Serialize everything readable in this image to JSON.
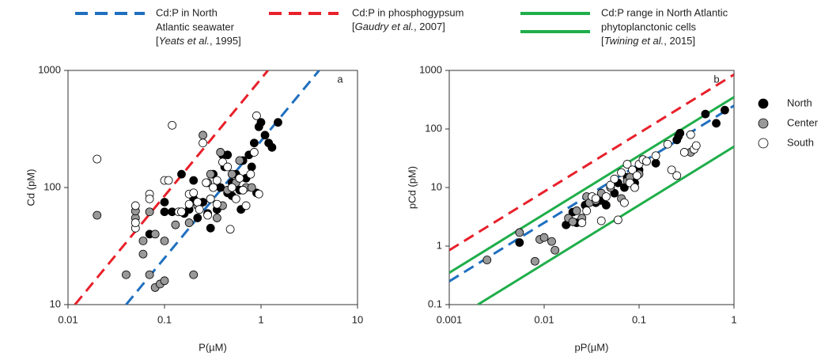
{
  "line_legend": [
    {
      "text": [
        "Cd:P in North",
        "Atlantic seawater"
      ],
      "cite": [
        "[",
        "Yeats et al.",
        ", 1995]"
      ],
      "color": "#1f6fbf",
      "dashed": true,
      "strokes": 1
    },
    {
      "text": [
        "Cd:P in phosphogypsum"
      ],
      "cite": [
        "[",
        "Gaudry et al.",
        ", 2007]"
      ],
      "color": "#e8202a",
      "dashed": true,
      "strokes": 1
    },
    {
      "text": [
        "Cd:P range in North Atlantic",
        "phytoplanctonic cells"
      ],
      "cite": [
        "[",
        "Twining et al.",
        ", 2015]"
      ],
      "color": "#1fae4a",
      "dashed": false,
      "strokes": 2
    }
  ],
  "chart_data": [
    {
      "type": "scatter",
      "panel_label": "a",
      "x_label": "P(µM)",
      "y_label": "Cd (pM)",
      "log_x": true,
      "log_y": true,
      "xlim": [
        0.01,
        10
      ],
      "ylim": [
        10,
        1000
      ],
      "xticks": [
        0.01,
        0.1,
        1,
        10
      ],
      "yticks": [
        10,
        100,
        1000
      ],
      "lines": [
        {
          "color": "#1f6fbf",
          "dashed": true,
          "x": [
            0.04,
            4
          ],
          "y": [
            10,
            1000
          ]
        },
        {
          "color": "#e8202a",
          "dashed": true,
          "x": [
            0.0118,
            1.18
          ],
          "y": [
            10,
            1000
          ]
        }
      ],
      "series": [
        {
          "color": "#000000",
          "x": [
            0.07,
            0.1,
            0.1,
            0.12,
            0.15,
            0.18,
            0.2,
            0.2,
            0.25,
            0.28,
            0.3,
            0.3,
            0.35,
            0.38,
            0.4,
            0.42,
            0.45,
            0.5,
            0.5,
            0.55,
            0.6,
            0.65,
            0.7,
            0.75,
            0.8,
            0.85,
            0.9,
            0.95,
            1.0,
            1.1,
            1.2,
            1.3,
            1.5,
            0.62,
            0.32,
            0.22,
            0.45,
            0.16
          ],
          "y": [
            40,
            62,
            75,
            62,
            130,
            65,
            80,
            115,
            75,
            60,
            45,
            80,
            65,
            100,
            190,
            150,
            90,
            85,
            110,
            130,
            95,
            170,
            120,
            190,
            150,
            240,
            90,
            330,
            360,
            280,
            240,
            220,
            360,
            65,
            130,
            55,
            190,
            60
          ]
        },
        {
          "color": "#999999",
          "x": [
            0.02,
            0.04,
            0.05,
            0.05,
            0.06,
            0.06,
            0.07,
            0.07,
            0.08,
            0.08,
            0.09,
            0.1,
            0.1,
            0.13,
            0.15,
            0.18,
            0.2,
            0.22,
            0.25,
            0.28,
            0.3,
            0.35,
            0.38,
            0.4,
            0.45,
            0.5,
            0.55,
            0.6,
            0.7,
            0.8
          ],
          "y": [
            58,
            18,
            55,
            63,
            27,
            35,
            18,
            62,
            40,
            14,
            15,
            35,
            16,
            48,
            62,
            50,
            18,
            70,
            280,
            110,
            130,
            55,
            200,
            70,
            95,
            130,
            110,
            170,
            100,
            100
          ]
        },
        {
          "color": "#ffffff",
          "x": [
            0.02,
            0.05,
            0.05,
            0.05,
            0.07,
            0.07,
            0.1,
            0.11,
            0.12,
            0.14,
            0.15,
            0.18,
            0.18,
            0.2,
            0.22,
            0.23,
            0.25,
            0.27,
            0.3,
            0.32,
            0.35,
            0.4,
            0.45,
            0.48,
            0.5,
            0.55,
            0.6,
            0.65,
            0.7,
            0.78,
            0.85,
            0.9,
            0.95,
            0.35,
            0.28
          ],
          "y": [
            175,
            70,
            45,
            50,
            88,
            80,
            115,
            115,
            340,
            62,
            62,
            72,
            88,
            90,
            75,
            65,
            240,
            110,
            80,
            100,
            115,
            165,
            150,
            44,
            100,
            80,
            120,
            95,
            70,
            130,
            200,
            410,
            88,
            72,
            58
          ]
        }
      ]
    },
    {
      "type": "scatter",
      "panel_label": "b",
      "x_label": "pP(µM)",
      "y_label": "pCd (pM)",
      "log_x": true,
      "log_y": true,
      "xlim": [
        0.001,
        1
      ],
      "ylim": [
        0.1,
        1000
      ],
      "xticks": [
        0.001,
        0.01,
        0.1,
        1
      ],
      "yticks": [
        0.1,
        1,
        10,
        100,
        1000
      ],
      "lines": [
        {
          "color": "#e8202a",
          "dashed": true,
          "x": [
            0.001,
            1
          ],
          "y": [
            0.85,
            850
          ]
        },
        {
          "color": "#1fae4a",
          "dashed": false,
          "x": [
            0.001,
            1
          ],
          "y": [
            0.35,
            350
          ]
        },
        {
          "color": "#1fae4a",
          "dashed": false,
          "x": [
            0.002,
            1
          ],
          "y": [
            0.1,
            50
          ]
        },
        {
          "color": "#1f6fbf",
          "dashed": true,
          "x": [
            0.001,
            1
          ],
          "y": [
            0.25,
            250
          ]
        }
      ],
      "series": [
        {
          "name": "North",
          "color": "#000000",
          "x": [
            0.0055,
            0.017,
            0.02,
            0.022,
            0.027,
            0.03,
            0.035,
            0.04,
            0.045,
            0.055,
            0.06,
            0.07,
            0.075,
            0.09,
            0.1,
            0.15,
            0.25,
            0.27,
            0.5,
            0.65,
            0.8,
            0.26
          ],
          "y": [
            1.15,
            2.3,
            3.8,
            2.5,
            5,
            6,
            5.5,
            6,
            5,
            8,
            12,
            10,
            15,
            12,
            20,
            26,
            65,
            85,
            180,
            125,
            210,
            75
          ]
        },
        {
          "name": "Center",
          "color": "#999999",
          "x": [
            0.0025,
            0.0055,
            0.008,
            0.009,
            0.01,
            0.012,
            0.013,
            0.018,
            0.02,
            0.022,
            0.025,
            0.028,
            0.03,
            0.035,
            0.04,
            0.05,
            0.065,
            0.075,
            0.08,
            0.1,
            0.35
          ],
          "y": [
            0.58,
            1.7,
            0.55,
            1.3,
            1.4,
            1.2,
            0.85,
            3,
            2.6,
            4,
            3,
            7,
            5.5,
            6,
            8,
            10,
            6.5,
            13,
            15,
            17,
            40
          ]
        },
        {
          "name": "South",
          "color": "#ffffff",
          "x": [
            0.025,
            0.028,
            0.032,
            0.035,
            0.04,
            0.045,
            0.05,
            0.055,
            0.06,
            0.065,
            0.07,
            0.075,
            0.08,
            0.085,
            0.09,
            0.095,
            0.1,
            0.11,
            0.12,
            0.15,
            0.2,
            0.22,
            0.25,
            0.3,
            0.38,
            0.4,
            0.35
          ],
          "y": [
            2.5,
            4,
            7,
            6.5,
            2.7,
            7,
            11,
            14,
            2.8,
            18,
            5.5,
            25,
            12,
            20,
            10,
            16,
            25,
            30,
            28,
            35,
            55,
            20,
            16,
            40,
            45,
            52,
            80
          ]
        }
      ]
    }
  ]
}
